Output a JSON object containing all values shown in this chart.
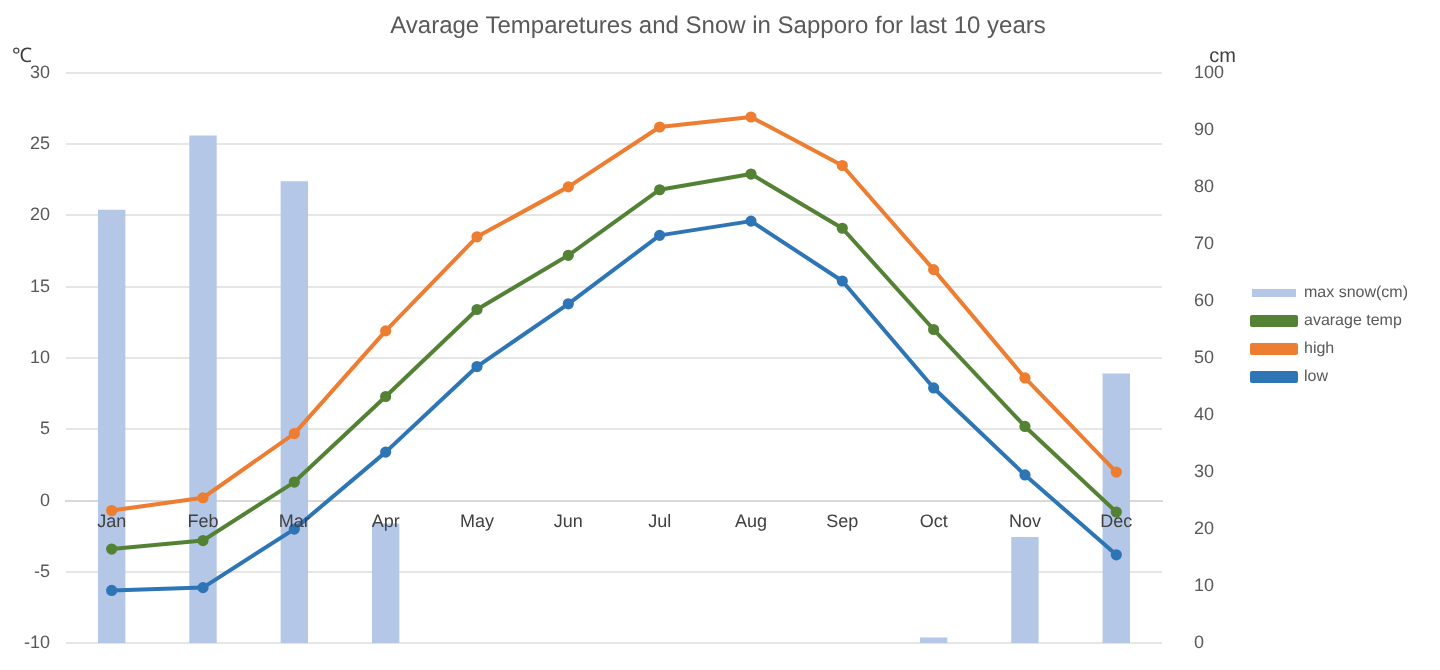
{
  "chart_data": {
    "type": "line",
    "title": "Avarage Temparetures and Snow in Sapporo for last 10 years",
    "ylabel": "℃",
    "y2label": "cm",
    "categories": [
      "Jan",
      "Feb",
      "Mar",
      "Apr",
      "May",
      "Jun",
      "Jul",
      "Aug",
      "Sep",
      "Oct",
      "Nov",
      "Dec"
    ],
    "series": [
      {
        "name": "max snow(cm)",
        "type": "bar",
        "axis": "y2",
        "color": "#b4c7e7",
        "values": [
          76,
          89,
          81,
          21,
          0,
          0,
          0,
          0,
          0,
          1,
          18.6,
          47.3
        ]
      },
      {
        "name": "avarage temp",
        "color": "#548235",
        "values": [
          -3.4,
          -2.8,
          1.3,
          7.3,
          13.4,
          17.2,
          21.8,
          22.9,
          19.1,
          12.0,
          5.2,
          -0.8
        ]
      },
      {
        "name": "high",
        "color": "#ed7d31",
        "values": [
          -0.7,
          0.2,
          4.7,
          11.9,
          18.5,
          22.0,
          26.2,
          26.9,
          23.5,
          16.2,
          8.6,
          2.0
        ]
      },
      {
        "name": "low",
        "color": "#2e75b6",
        "values": [
          -6.3,
          -6.1,
          -2.0,
          3.4,
          9.4,
          13.8,
          18.6,
          19.6,
          15.4,
          7.9,
          1.8,
          -3.8
        ]
      }
    ],
    "ylim": [
      -10,
      30
    ],
    "yticks": [
      -10,
      -5,
      0,
      5,
      10,
      15,
      20,
      25,
      30
    ],
    "y2lim": [
      0,
      100
    ],
    "y2ticks": [
      0,
      10,
      20,
      30,
      40,
      50,
      60,
      70,
      80,
      90,
      100
    ],
    "grid": "y",
    "legend": "right",
    "marker": "circle",
    "line_style": "solid"
  }
}
